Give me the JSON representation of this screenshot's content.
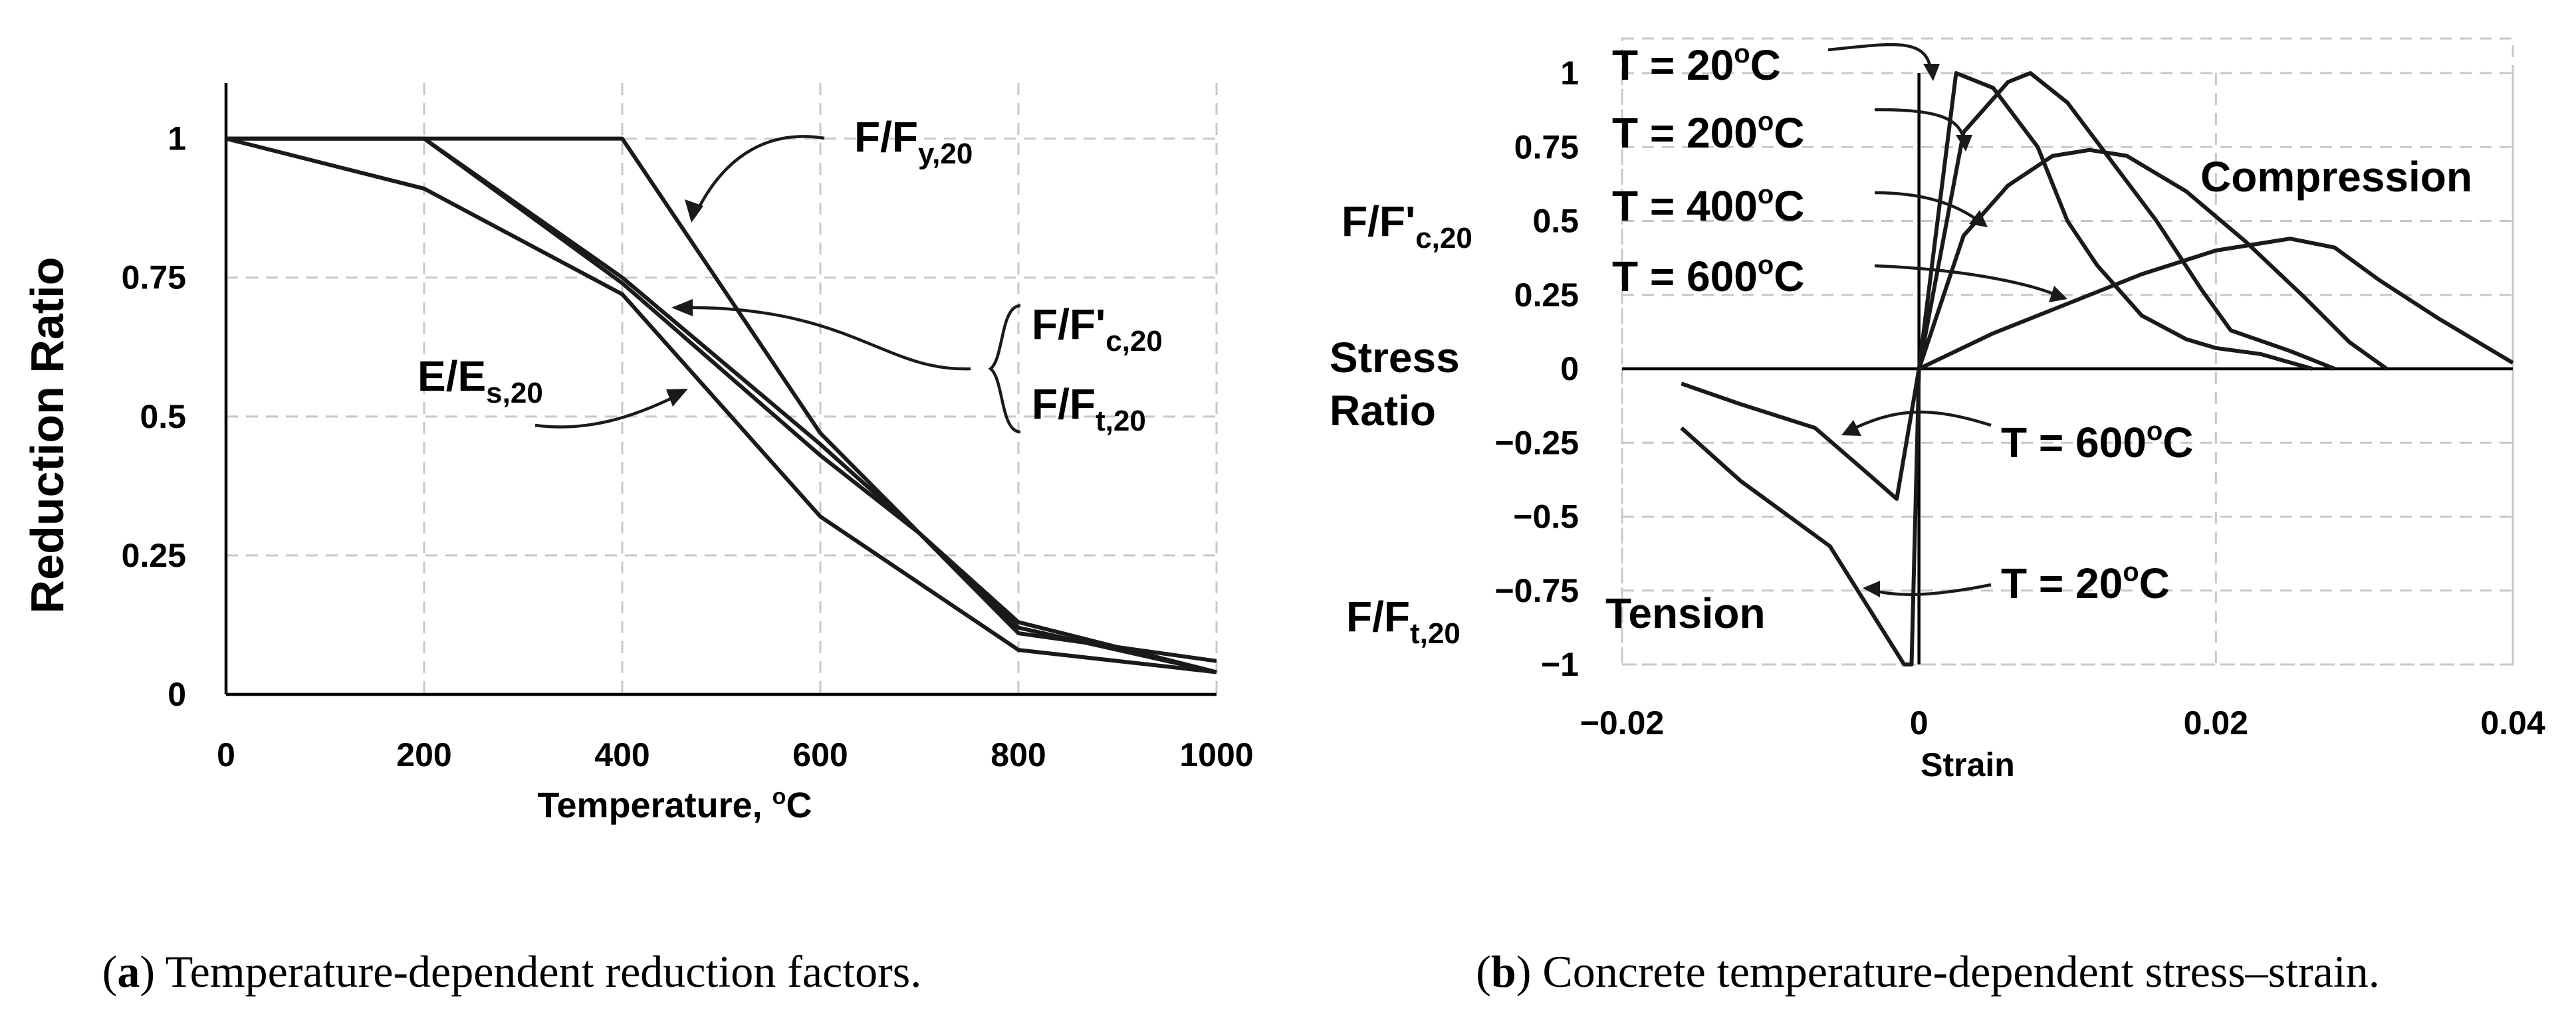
{
  "chart_data": [
    {
      "id": "a",
      "type": "line",
      "caption_letter": "a",
      "caption_text": "Temperature-dependent reduction factors.",
      "xlabel": "Temperature, ",
      "xlabel_unit_sup": "o",
      "xlabel_unit": "C",
      "ylabel": "Reduction Ratio",
      "xlim": [
        0,
        1000
      ],
      "ylim": [
        0,
        1.1
      ],
      "xticks": [
        0,
        200,
        400,
        600,
        800,
        1000
      ],
      "xtick_labels": [
        "0",
        "200",
        "400",
        "600",
        "800",
        "1000"
      ],
      "yticks": [
        0,
        0.25,
        0.5,
        0.75,
        1
      ],
      "ytick_labels": [
        "0",
        "0.25",
        "0.5",
        "0.75",
        "1"
      ],
      "grid": true,
      "series": [
        {
          "name": "F/Fy,20",
          "x": [
            0,
            20,
            400,
            600,
            800,
            1000
          ],
          "y": [
            1,
            1,
            1,
            0.47,
            0.11,
            0.06
          ]
        },
        {
          "name": "F/F'c,20",
          "x": [
            0,
            20,
            200,
            400,
            600,
            800,
            1000
          ],
          "y": [
            1,
            1,
            1,
            0.75,
            0.45,
            0.13,
            0.04
          ]
        },
        {
          "name": "F/Ft,20",
          "x": [
            0,
            200,
            400,
            600,
            700,
            800,
            1000
          ],
          "y": [
            1,
            1,
            0.74,
            0.43,
            0.29,
            0.12,
            0.04
          ]
        },
        {
          "name": "E/Es,20",
          "x": [
            0,
            200,
            400,
            600,
            800,
            1000
          ],
          "y": [
            1,
            0.91,
            0.72,
            0.32,
            0.08,
            0.04
          ]
        }
      ],
      "annotations": {
        "fy": {
          "main": "F/F",
          "sub": "y,20"
        },
        "fc": {
          "main": "F/F'",
          "sub": "c,20"
        },
        "ft": {
          "main": "F/F",
          "sub": "t,20"
        },
        "es": {
          "main": "E/E",
          "sub": "s,20"
        }
      }
    },
    {
      "id": "b",
      "type": "line",
      "caption_letter": "b",
      "caption_text": "Concrete temperature-dependent stress–strain.",
      "xlabel": "Strain",
      "ylabel_lines": [
        "Stress",
        "Ratio"
      ],
      "ylabel_compression": {
        "main": "F/F'",
        "sub": "c,20"
      },
      "ylabel_tension": {
        "main": "F/F",
        "sub": "t,20"
      },
      "xlim": [
        -0.02,
        0.04
      ],
      "ylim": [
        -1,
        1
      ],
      "xticks": [
        -0.02,
        0,
        0.02,
        0.04
      ],
      "xtick_labels": [
        "−0.02",
        "0",
        "0.02",
        "0.04"
      ],
      "yticks": [
        1,
        0.75,
        0.5,
        0.25,
        0,
        -0.25,
        -0.5,
        -0.75,
        -1
      ],
      "ytick_labels": [
        "1",
        "0.75",
        "0.5",
        "0.25",
        "0",
        "−0.25",
        "−0.5",
        "−0.75",
        "−1"
      ],
      "grid": true,
      "region_labels": {
        "compression": "Compression",
        "tension": "Tension"
      },
      "series": [
        {
          "name": "T = 20°C",
          "x": [
            0,
            0.0025,
            0.005,
            0.008,
            0.01,
            0.012,
            0.015,
            0.018,
            0.02,
            0.023,
            0.0265
          ],
          "y": [
            0,
            1,
            0.95,
            0.75,
            0.5,
            0.35,
            0.18,
            0.1,
            0.07,
            0.05,
            0
          ]
        },
        {
          "name": "T = 200°C",
          "x": [
            0,
            0.003,
            0.006,
            0.0075,
            0.01,
            0.013,
            0.016,
            0.019,
            0.021,
            0.025,
            0.028
          ],
          "y": [
            0,
            0.8,
            0.97,
            1,
            0.9,
            0.7,
            0.5,
            0.27,
            0.13,
            0.06,
            0
          ]
        },
        {
          "name": "T = 400°C",
          "x": [
            0,
            0.003,
            0.006,
            0.009,
            0.0115,
            0.014,
            0.018,
            0.022,
            0.026,
            0.029,
            0.0315
          ],
          "y": [
            0,
            0.45,
            0.62,
            0.72,
            0.74,
            0.72,
            0.6,
            0.43,
            0.24,
            0.09,
            0
          ]
        },
        {
          "name": "T = 600°C",
          "x": [
            0,
            0.005,
            0.01,
            0.015,
            0.02,
            0.025,
            0.028,
            0.031,
            0.035,
            0.04
          ],
          "y": [
            0,
            0.12,
            0.22,
            0.32,
            0.4,
            0.44,
            0.41,
            0.3,
            0.17,
            0.02
          ]
        },
        {
          "name": "T = 20°C tension",
          "x": [
            0,
            -0.0005,
            -0.001,
            -0.002,
            -0.006,
            -0.012,
            -0.016
          ],
          "y": [
            0,
            -1,
            -1,
            -0.92,
            -0.6,
            -0.38,
            -0.2
          ]
        },
        {
          "name": "T = 600°C tension",
          "x": [
            0,
            -0.0015,
            -0.004,
            -0.007,
            -0.012,
            -0.016
          ],
          "y": [
            0,
            -0.44,
            -0.33,
            -0.2,
            -0.12,
            -0.05
          ]
        }
      ],
      "annotations": {
        "t20": {
          "prefix": "T = 20",
          "sup": "o",
          "suffix": "C"
        },
        "t200": {
          "prefix": "T = 200",
          "sup": "o",
          "suffix": "C"
        },
        "t400": {
          "prefix": "T = 400",
          "sup": "o",
          "suffix": "C"
        },
        "t600": {
          "prefix": "T = 600",
          "sup": "o",
          "suffix": "C"
        },
        "t600_tension": {
          "prefix": "T = 600",
          "sup": "o",
          "suffix": "C"
        },
        "t20_tension": {
          "prefix": "T = 20",
          "sup": "o",
          "suffix": "C"
        }
      }
    }
  ]
}
